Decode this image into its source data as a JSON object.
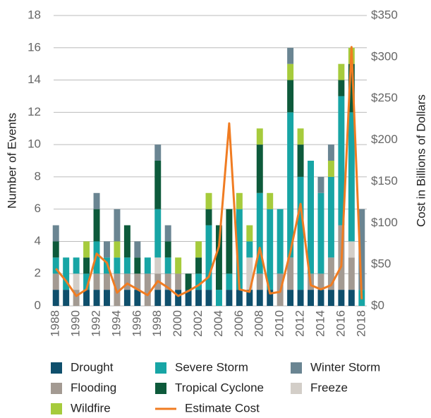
{
  "chart_data": {
    "type": "bar",
    "y_label": "Number of Events",
    "y2_label": "Cost in Billions of Dollars",
    "categories": [
      "1988",
      null,
      "1990",
      null,
      "1992",
      null,
      "1994",
      null,
      "1996",
      null,
      "1998",
      null,
      "2000",
      null,
      "2002",
      null,
      "2004",
      null,
      "2006",
      null,
      "2008",
      null,
      "2010",
      null,
      "2012",
      null,
      "2014",
      null,
      "2016",
      null,
      "2018"
    ],
    "stacked": true,
    "grid": true,
    "legend": "bottom",
    "ylim": [
      0,
      18
    ],
    "yticks": [
      0,
      2,
      4,
      6,
      8,
      10,
      12,
      14,
      16,
      18
    ],
    "y2lim": [
      0,
      350
    ],
    "y2ticks": [
      {
        "value": 0,
        "label": "$0"
      },
      {
        "value": 50,
        "label": "$50"
      },
      {
        "value": 100,
        "label": "$100"
      },
      {
        "value": 150,
        "label": "$150"
      },
      {
        "value": 200,
        "label": "$200"
      },
      {
        "value": 250,
        "label": "$250"
      },
      {
        "value": 300,
        "label": "$300"
      },
      {
        "value": 350,
        "label": "$350"
      }
    ],
    "series": [
      {
        "name": "Drought",
        "color": "#0f4f6c",
        "values": [
          1,
          1,
          0,
          1,
          1,
          1,
          0,
          1,
          1,
          0,
          1,
          1,
          1,
          1,
          1,
          1,
          0,
          1,
          1,
          1,
          1,
          1,
          0,
          1,
          1,
          1,
          1,
          1,
          1,
          1,
          0
        ]
      },
      {
        "name": "Flooding",
        "color": "#a39a92",
        "values": [
          1,
          0,
          1,
          0,
          1,
          1,
          2,
          1,
          1,
          2,
          1,
          1,
          1,
          0,
          0,
          0,
          0,
          0,
          0,
          0,
          1,
          0,
          2,
          2,
          0,
          1,
          1,
          2,
          4,
          2,
          0
        ]
      },
      {
        "name": "Freeze",
        "color": "#d3cec8",
        "values": [
          0,
          0,
          1,
          0,
          0,
          0,
          0,
          0,
          0,
          0,
          1,
          0,
          0,
          0,
          0,
          0,
          0,
          0,
          0,
          2,
          0,
          0,
          0,
          0,
          0,
          0,
          0,
          0,
          0,
          1,
          0
        ]
      },
      {
        "name": "Severe Storm",
        "color": "#17a5a5",
        "values": [
          1,
          2,
          1,
          1,
          2,
          1,
          1,
          1,
          0,
          1,
          3,
          1,
          0,
          0,
          1,
          4,
          1,
          1,
          5,
          1,
          5,
          5,
          4,
          9,
          7,
          7,
          5,
          5,
          8,
          8,
          1
        ]
      },
      {
        "name": "Tropical Cyclone",
        "color": "#0d5a3b",
        "values": [
          1,
          0,
          0,
          1,
          2,
          0,
          0,
          2,
          1,
          0,
          3,
          1,
          0,
          1,
          1,
          1,
          4,
          4,
          0,
          0,
          3,
          0,
          0,
          2,
          2,
          0,
          0,
          0,
          1,
          3,
          0
        ]
      },
      {
        "name": "Wildfire",
        "color": "#a6cb3c",
        "values": [
          0,
          0,
          0,
          1,
          0,
          0,
          1,
          0,
          0,
          0,
          0,
          0,
          1,
          0,
          1,
          1,
          0,
          0,
          1,
          1,
          1,
          1,
          0,
          1,
          1,
          0,
          0,
          1,
          1,
          1,
          0
        ]
      },
      {
        "name": "Winter Storm",
        "color": "#6a8592",
        "values": [
          1,
          0,
          0,
          0,
          1,
          1,
          2,
          0,
          1,
          0,
          1,
          1,
          0,
          0,
          0,
          0,
          0,
          0,
          0,
          0,
          0,
          0,
          0,
          1,
          0,
          0,
          1,
          1,
          0,
          0,
          5
        ]
      },
      {
        "name": "Estimate Cost",
        "color": "#f07c22",
        "type": "line",
        "axis": "y2",
        "values": [
          45,
          30,
          12,
          20,
          63,
          52,
          16,
          27,
          20,
          13,
          30,
          22,
          12,
          18,
          25,
          35,
          72,
          220,
          20,
          17,
          70,
          15,
          17,
          65,
          123,
          25,
          20,
          25,
          48,
          312,
          8
        ]
      }
    ]
  }
}
